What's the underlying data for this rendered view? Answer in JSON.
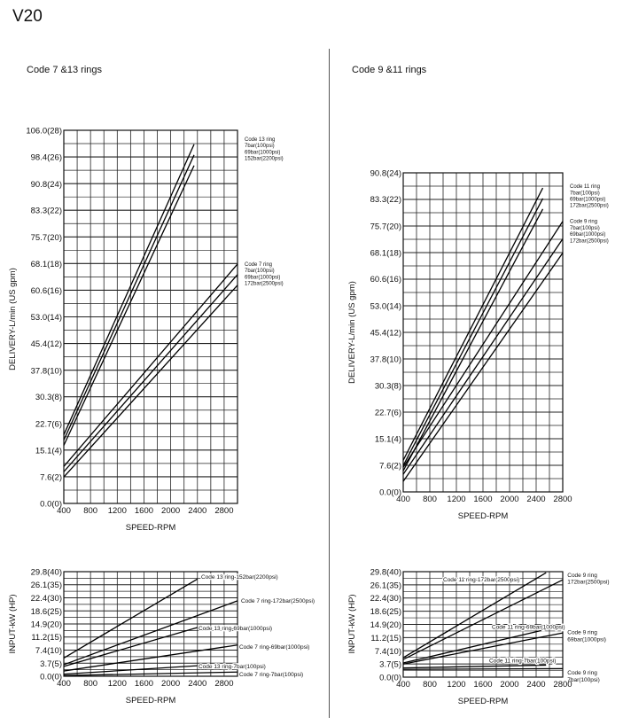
{
  "page": {
    "title": "V20",
    "left_heading": "Code 7 &13 rings",
    "right_heading": "Code 9 &11 rings"
  },
  "chart_data": [
    {
      "type": "line",
      "xlabel": "SPEED-RPM",
      "ylabel": "DELIVERY-L/min (US gpm)",
      "xlim": [
        400,
        3000
      ],
      "ylim": [
        0,
        106.0
      ],
      "x_ticks": [
        400,
        800,
        1200,
        1600,
        2000,
        2400,
        2800
      ],
      "y_ticks": [
        0.0,
        7.6,
        15.1,
        22.7,
        30.3,
        37.8,
        45.4,
        53.0,
        60.6,
        68.1,
        75.7,
        83.3,
        90.8,
        98.4,
        106.0
      ],
      "y_tick_labels": [
        "0.0(0)",
        "7.6(2)",
        "15.1(4)",
        "22.7(6)",
        "30.3(8)",
        "37.8(10)",
        "45.4(12)",
        "53.0(14)",
        "60.6(16)",
        "68.1(18)",
        "75.7(20)",
        "83.3(22)",
        "90.8(24)",
        "98.4(26)",
        "106.0(28)"
      ],
      "grid": true,
      "series": [
        {
          "x": [
            400,
            2350
          ],
          "y": [
            19.5,
            102
          ]
        },
        {
          "x": [
            400,
            2350
          ],
          "y": [
            18,
            99
          ]
        },
        {
          "x": [
            400,
            2350
          ],
          "y": [
            16.5,
            96
          ]
        },
        {
          "x": [
            400,
            3000
          ],
          "y": [
            10.5,
            68
          ]
        },
        {
          "x": [
            400,
            3000
          ],
          "y": [
            9,
            65
          ]
        },
        {
          "x": [
            400,
            3000
          ],
          "y": [
            7.5,
            62
          ]
        }
      ],
      "annotations": [
        {
          "lines": [
            "Code 13 ring",
            "7bar(100psi)",
            "69bar(1000psi)",
            "152bar(2200psi)"
          ],
          "x": 3106,
          "y": 103.5
        },
        {
          "lines": [
            "Code 7 ring",
            "7bar(100psi)",
            "69bar(1000psi)",
            "172bar(2500psi)"
          ],
          "x": 3106,
          "y": 68
        }
      ]
    },
    {
      "type": "line",
      "xlabel": "SPEED-RPM",
      "ylabel": "DELIVERY-L/min (US gpm)",
      "xlim": [
        400,
        2800
      ],
      "ylim": [
        0,
        90.8
      ],
      "x_ticks": [
        400,
        800,
        1200,
        1600,
        2000,
        2400,
        2800
      ],
      "y_ticks": [
        0.0,
        7.6,
        15.1,
        22.7,
        30.3,
        37.8,
        45.4,
        53.0,
        60.6,
        68.1,
        75.7,
        83.3,
        90.8
      ],
      "y_tick_labels": [
        "0.0(0)",
        "7.6(2)",
        "15.1(4)",
        "22.7(6)",
        "30.3(8)",
        "37.8(10)",
        "45.4(12)",
        "53.0(14)",
        "60.6(16)",
        "68.1(18)",
        "75.7(20)",
        "83.3(22)",
        "90.8(24)"
      ],
      "grid": true,
      "series": [
        {
          "x": [
            400,
            2500
          ],
          "y": [
            9,
            86.5
          ]
        },
        {
          "x": [
            400,
            2500
          ],
          "y": [
            7.5,
            83.5
          ]
        },
        {
          "x": [
            400,
            2500
          ],
          "y": [
            6,
            80.5
          ]
        },
        {
          "x": [
            400,
            2800
          ],
          "y": [
            7,
            77
          ]
        },
        {
          "x": [
            400,
            2800
          ],
          "y": [
            5,
            72
          ]
        },
        {
          "x": [
            400,
            2800
          ],
          "y": [
            3,
            68
          ]
        }
      ],
      "annotations": [
        {
          "lines": [
            "Code 11 ring",
            "7bar(100psi)",
            "69bar(1000psi)",
            "172bar(2500psi)"
          ],
          "x": 2907,
          "y": 87
        },
        {
          "lines": [
            "Code 9 ring",
            "7bar(100psi)",
            "69bar(1000psi)",
            "172bar(2500psi)"
          ],
          "x": 2907,
          "y": 77
        }
      ]
    },
    {
      "type": "line",
      "xlabel": "SPEED-RPM",
      "ylabel": "INPUT-kW (HP)",
      "xlim": [
        400,
        3000
      ],
      "ylim": [
        0,
        29.8
      ],
      "x_ticks": [
        400,
        800,
        1200,
        1600,
        2000,
        2400,
        2800
      ],
      "y_ticks": [
        0.0,
        3.7,
        7.4,
        11.2,
        14.9,
        18.6,
        22.4,
        26.1,
        29.8
      ],
      "y_tick_labels": [
        "0.0(0)",
        "3.7(5)",
        "7.4(10)",
        "11.2(15)",
        "14.9(20)",
        "18.6(25)",
        "22.4(30)",
        "26.1(35)",
        "29.8(40)"
      ],
      "grid": true,
      "series": [
        {
          "x": [
            400,
            2400
          ],
          "y": [
            5.2,
            27.7
          ]
        },
        {
          "x": [
            400,
            3000
          ],
          "y": [
            3.3,
            21.5
          ]
        },
        {
          "x": [
            400,
            2400
          ],
          "y": [
            2.8,
            13.9
          ]
        },
        {
          "x": [
            400,
            3000
          ],
          "y": [
            1.5,
            8.9
          ]
        },
        {
          "x": [
            400,
            2400
          ],
          "y": [
            0.6,
            3.0
          ]
        },
        {
          "x": [
            400,
            3000
          ],
          "y": [
            0.2,
            1.2
          ]
        }
      ],
      "annotations": [
        {
          "lines": [
            "Code 13 ring-152bar(2200psi)"
          ],
          "x": 2456,
          "y": 28.3
        },
        {
          "lines": [
            "Code 7 ring-172bar(2500psi)"
          ],
          "x": 3053,
          "y": 21.5
        },
        {
          "lines": [
            "Code 13 ring-69bar(1000psi)"
          ],
          "x": 2416,
          "y": 13.6
        },
        {
          "lines": [
            "Code 7 ring-69bar(1000psi)"
          ],
          "x": 3026,
          "y": 8.3
        },
        {
          "lines": [
            "Code 13 ring-7bar(100psi)"
          ],
          "x": 2416,
          "y": 2.8
        },
        {
          "lines": [
            "Code 7 ring-7bar(100psi)"
          ],
          "x": 3026,
          "y": 0.5
        }
      ]
    },
    {
      "type": "line",
      "xlabel": "SPEED-RPM",
      "ylabel": "INPUT-kW (HP)",
      "xlim": [
        400,
        2800
      ],
      "ylim": [
        0,
        29.8
      ],
      "x_ticks": [
        400,
        800,
        1200,
        1600,
        2000,
        2400,
        2800
      ],
      "y_ticks": [
        0.0,
        3.7,
        7.4,
        11.2,
        14.9,
        18.6,
        22.4,
        26.1,
        29.8
      ],
      "y_tick_labels": [
        "0.0(0)",
        "3.7(5)",
        "7.4(10)",
        "11.2(15)",
        "14.9(20)",
        "18.6(25)",
        "22.4(30)",
        "26.1(35)",
        "29.8(40)"
      ],
      "grid": true,
      "series": [
        {
          "x": [
            400,
            2550
          ],
          "y": [
            5.5,
            29.5
          ]
        },
        {
          "x": [
            400,
            2800
          ],
          "y": [
            5.0,
            27.5
          ]
        },
        {
          "x": [
            400,
            2550
          ],
          "y": [
            4.0,
            13.5
          ]
        },
        {
          "x": [
            400,
            2800
          ],
          "y": [
            3.7,
            12.5
          ]
        },
        {
          "x": [
            400,
            2550
          ],
          "y": [
            2.6,
            3.4
          ]
        },
        {
          "x": [
            400,
            2800
          ],
          "y": [
            2.2,
            2.4
          ]
        }
      ],
      "annotations": [
        {
          "lines": [
            "Code 11 ring-172bar(2500psi)"
          ],
          "x": 1000,
          "y": 27.5
        },
        {
          "lines": [
            "Code 9 ring",
            "172bar(2500psi)"
          ],
          "x": 2870,
          "y": 28.8
        },
        {
          "lines": [
            "Code 11 ring-69bar(1000psi)"
          ],
          "x": 1733,
          "y": 14.1
        },
        {
          "lines": [
            "Code 9 ring",
            "69bar(1000psi)"
          ],
          "x": 2870,
          "y": 12.6
        },
        {
          "lines": [
            "Code 11 ring-7bar(100psi)"
          ],
          "x": 1693,
          "y": 4.6
        },
        {
          "lines": [
            "Code 9 ring",
            "7bar(100psi)"
          ],
          "x": 2870,
          "y": 1.2
        }
      ]
    }
  ]
}
